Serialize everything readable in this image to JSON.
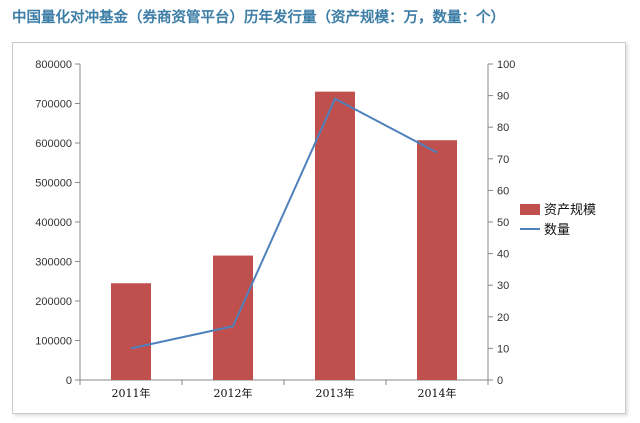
{
  "title": "中国量化对冲基金（券商资管平台）历年发行量（资产规模：万，数量：个）",
  "colors": {
    "bar": "#C0504D",
    "line": "#4F81BD",
    "title": "#3D7EA6"
  },
  "chart_data": {
    "type": "bar+line",
    "title": "中国量化对冲基金（券商资管平台）历年发行量（资产规模：万，数量：个）",
    "categories": [
      "2011年",
      "2012年",
      "2013年",
      "2014年"
    ],
    "series": [
      {
        "name": "资产规模",
        "type": "bar",
        "axis": "left",
        "values": [
          245000,
          315000,
          730000,
          607000
        ]
      },
      {
        "name": "数量",
        "type": "line",
        "axis": "right",
        "values": [
          10,
          17,
          89,
          72
        ]
      }
    ],
    "y_left": {
      "min": 0,
      "max": 800000,
      "step": 100000,
      "ticks": [
        "0",
        "100000",
        "200000",
        "300000",
        "400000",
        "500000",
        "600000",
        "700000",
        "800000"
      ]
    },
    "y_right": {
      "min": 0,
      "max": 100,
      "step": 10,
      "ticks": [
        "0",
        "10",
        "20",
        "30",
        "40",
        "50",
        "60",
        "70",
        "80",
        "90",
        "100"
      ]
    },
    "grid": false,
    "legend_position": "right"
  }
}
